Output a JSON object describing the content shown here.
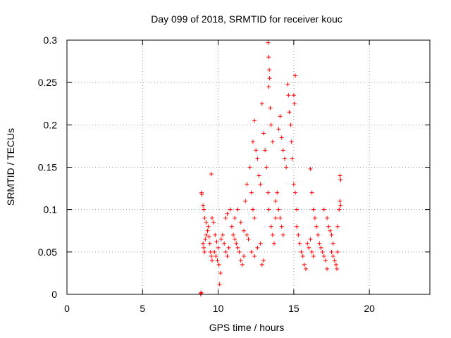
{
  "chart_data": {
    "type": "scatter",
    "title": "Day 099 of 2018, SRMTID for receiver kouc",
    "xlabel": "GPS time / hours",
    "ylabel": "SRMTID / TECUs",
    "xlim": [
      0,
      24
    ],
    "ylim": [
      0,
      0.3
    ],
    "xticks": [
      0,
      5,
      10,
      15,
      20
    ],
    "xtick_labels": [
      "0",
      "5",
      "10",
      "15",
      "20"
    ],
    "yticks": [
      0,
      0.05,
      0.1,
      0.15,
      0.2,
      0.25,
      0.3
    ],
    "ytick_labels": [
      "0",
      "0.05",
      "0.1",
      "0.15",
      "0.2",
      "0.25",
      "0.3"
    ],
    "grid": true,
    "marker": "+",
    "color": "#ff0000",
    "series": [
      {
        "name": "SRMTID",
        "points": [
          [
            8.85,
            0.0
          ],
          [
            8.85,
            0.001
          ],
          [
            8.88,
            0.002
          ],
          [
            8.9,
            0.12
          ],
          [
            8.92,
            0.118
          ],
          [
            9.0,
            0.105
          ],
          [
            9.05,
            0.1
          ],
          [
            9.1,
            0.09
          ],
          [
            9.2,
            0.085
          ],
          [
            9.0,
            0.06
          ],
          [
            9.05,
            0.055
          ],
          [
            9.1,
            0.05
          ],
          [
            9.15,
            0.065
          ],
          [
            9.2,
            0.07
          ],
          [
            9.3,
            0.075
          ],
          [
            9.35,
            0.08
          ],
          [
            9.4,
            0.068
          ],
          [
            9.45,
            0.06
          ],
          [
            9.5,
            0.05
          ],
          [
            9.55,
            0.045
          ],
          [
            9.6,
            0.04
          ],
          [
            9.55,
            0.142
          ],
          [
            9.6,
            0.09
          ],
          [
            9.7,
            0.085
          ],
          [
            9.8,
            0.07
          ],
          [
            9.9,
            0.062
          ],
          [
            10.0,
            0.055
          ],
          [
            9.75,
            0.05
          ],
          [
            9.85,
            0.045
          ],
          [
            9.95,
            0.04
          ],
          [
            10.05,
            0.035
          ],
          [
            10.1,
            0.012
          ],
          [
            10.15,
            0.025
          ],
          [
            10.2,
            0.065
          ],
          [
            10.3,
            0.07
          ],
          [
            10.4,
            0.06
          ],
          [
            10.5,
            0.05
          ],
          [
            10.6,
            0.045
          ],
          [
            10.7,
            0.055
          ],
          [
            10.5,
            0.09
          ],
          [
            10.6,
            0.095
          ],
          [
            10.8,
            0.1
          ],
          [
            10.9,
            0.08
          ],
          [
            11.0,
            0.07
          ],
          [
            11.1,
            0.065
          ],
          [
            11.2,
            0.06
          ],
          [
            11.3,
            0.055
          ],
          [
            11.4,
            0.05
          ],
          [
            11.5,
            0.04
          ],
          [
            11.6,
            0.035
          ],
          [
            11.7,
            0.045
          ],
          [
            11.1,
            0.09
          ],
          [
            11.3,
            0.1
          ],
          [
            11.5,
            0.085
          ],
          [
            11.7,
            0.075
          ],
          [
            11.9,
            0.07
          ],
          [
            12.0,
            0.065
          ],
          [
            11.8,
            0.11
          ],
          [
            11.9,
            0.13
          ],
          [
            12.1,
            0.15
          ],
          [
            12.2,
            0.12
          ],
          [
            12.3,
            0.1
          ],
          [
            12.4,
            0.09
          ],
          [
            12.3,
            0.18
          ],
          [
            12.4,
            0.205
          ],
          [
            12.5,
            0.17
          ],
          [
            12.6,
            0.16
          ],
          [
            12.7,
            0.14
          ],
          [
            12.8,
            0.13
          ],
          [
            12.2,
            0.05
          ],
          [
            12.4,
            0.045
          ],
          [
            12.6,
            0.055
          ],
          [
            12.8,
            0.06
          ],
          [
            12.9,
            0.035
          ],
          [
            13.0,
            0.04
          ],
          [
            12.9,
            0.225
          ],
          [
            13.0,
            0.19
          ],
          [
            13.1,
            0.17
          ],
          [
            13.2,
            0.15
          ],
          [
            13.3,
            0.12
          ],
          [
            13.35,
            0.1
          ],
          [
            13.3,
            0.297
          ],
          [
            13.35,
            0.28
          ],
          [
            13.38,
            0.265
          ],
          [
            13.4,
            0.255
          ],
          [
            13.35,
            0.245
          ],
          [
            13.45,
            0.22
          ],
          [
            13.5,
            0.2
          ],
          [
            13.6,
            0.18
          ],
          [
            13.5,
            0.08
          ],
          [
            13.6,
            0.07
          ],
          [
            13.7,
            0.06
          ],
          [
            13.8,
            0.09
          ],
          [
            13.8,
            0.11
          ],
          [
            13.9,
            0.12
          ],
          [
            14.0,
            0.1
          ],
          [
            14.1,
            0.09
          ],
          [
            14.2,
            0.08
          ],
          [
            14.3,
            0.07
          ],
          [
            14.0,
            0.195
          ],
          [
            14.1,
            0.21
          ],
          [
            14.2,
            0.185
          ],
          [
            14.3,
            0.17
          ],
          [
            14.4,
            0.16
          ],
          [
            14.5,
            0.15
          ],
          [
            14.6,
            0.248
          ],
          [
            14.65,
            0.235
          ],
          [
            14.7,
            0.215
          ],
          [
            14.8,
            0.2
          ],
          [
            14.85,
            0.18
          ],
          [
            14.9,
            0.16
          ],
          [
            15.0,
            0.235
          ],
          [
            15.05,
            0.225
          ],
          [
            15.1,
            0.258
          ],
          [
            15.0,
            0.13
          ],
          [
            15.1,
            0.12
          ],
          [
            15.2,
            0.1
          ],
          [
            15.2,
            0.08
          ],
          [
            15.3,
            0.07
          ],
          [
            15.4,
            0.06
          ],
          [
            15.5,
            0.05
          ],
          [
            15.6,
            0.045
          ],
          [
            15.7,
            0.035
          ],
          [
            15.8,
            0.03
          ],
          [
            15.9,
            0.06
          ],
          [
            16.0,
            0.055
          ],
          [
            16.1,
            0.065
          ],
          [
            16.2,
            0.05
          ],
          [
            16.3,
            0.045
          ],
          [
            16.1,
            0.148
          ],
          [
            16.2,
            0.12
          ],
          [
            16.3,
            0.1
          ],
          [
            16.4,
            0.09
          ],
          [
            16.5,
            0.08
          ],
          [
            16.6,
            0.07
          ],
          [
            16.7,
            0.06
          ],
          [
            16.8,
            0.055
          ],
          [
            16.9,
            0.05
          ],
          [
            17.0,
            0.045
          ],
          [
            17.1,
            0.04
          ],
          [
            17.2,
            0.03
          ],
          [
            17.0,
            0.1
          ],
          [
            17.2,
            0.09
          ],
          [
            17.3,
            0.08
          ],
          [
            17.4,
            0.075
          ],
          [
            17.5,
            0.07
          ],
          [
            17.6,
            0.06
          ],
          [
            17.5,
            0.05
          ],
          [
            17.6,
            0.045
          ],
          [
            17.7,
            0.04
          ],
          [
            17.8,
            0.035
          ],
          [
            17.85,
            0.03
          ],
          [
            17.9,
            0.05
          ],
          [
            17.9,
            0.08
          ],
          [
            18.0,
            0.1
          ],
          [
            18.05,
            0.11
          ],
          [
            18.1,
            0.135
          ],
          [
            18.05,
            0.14
          ],
          [
            18.1,
            0.105
          ]
        ]
      }
    ]
  }
}
